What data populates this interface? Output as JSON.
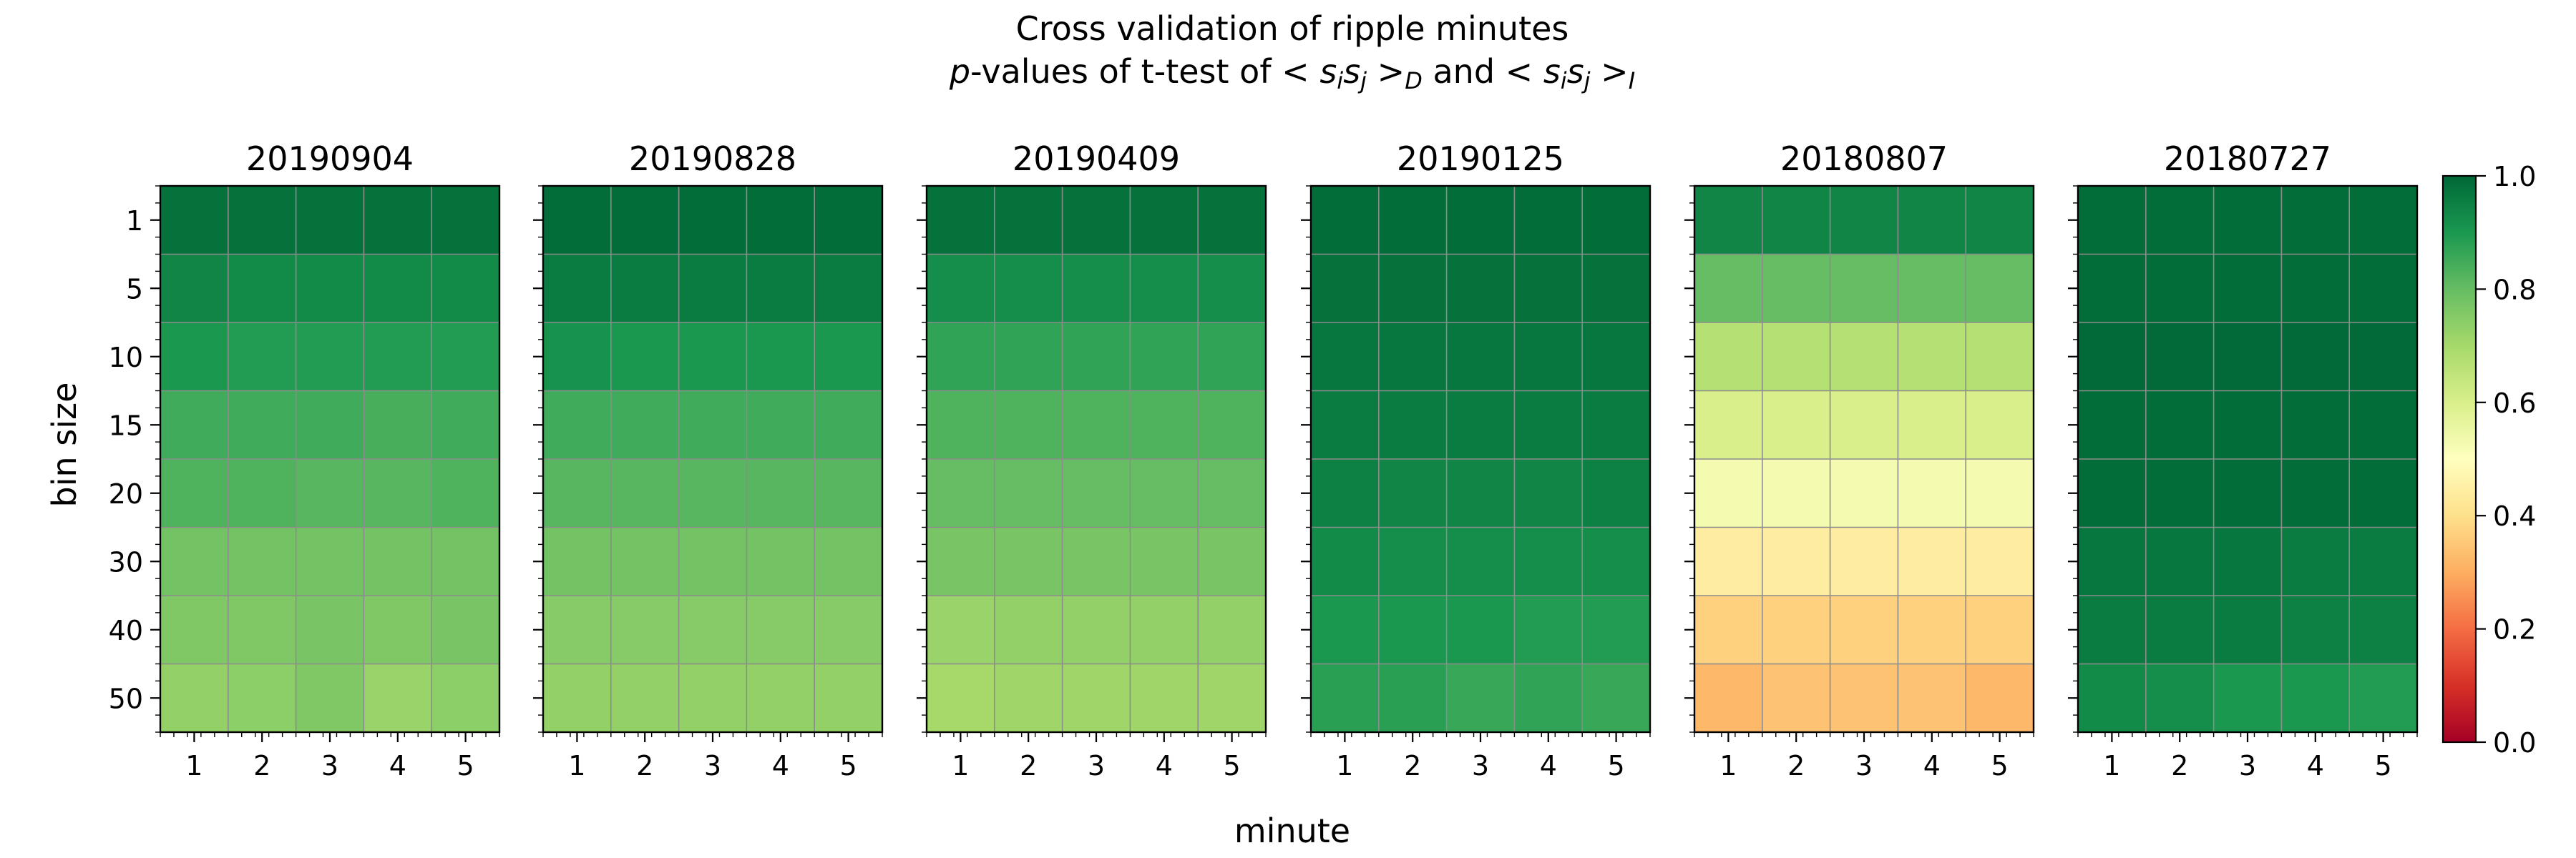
{
  "chart_data": {
    "type": "heatmap",
    "title_line1": "Cross validation of ripple minutes",
    "title_line2": {
      "p": "p",
      "dash_text": "-values of t-test of ",
      "lt": "< ",
      "s1": "s",
      "i": "i",
      "s2": "s",
      "j": "j",
      "gt": " >",
      "subD": "D",
      "and_text": " and ",
      "subI": "I"
    },
    "xlabel": "minute",
    "ylabel": "bin size",
    "x_ticks": [
      "1",
      "2",
      "3",
      "4",
      "5"
    ],
    "y_ticks": [
      "1",
      "5",
      "10",
      "15",
      "20",
      "30",
      "40",
      "50"
    ],
    "colorbar": {
      "ticks": [
        "0.0",
        "0.2",
        "0.4",
        "0.6",
        "0.8",
        "1.0"
      ],
      "range": [
        0,
        1
      ],
      "colormap": "RdYlGn",
      "stops": [
        "#a50026",
        "#d73027",
        "#f46d43",
        "#fdae61",
        "#fee08b",
        "#ffffbf",
        "#d9ef8b",
        "#a6d96a",
        "#66bd63",
        "#1a9850",
        "#006837"
      ]
    },
    "panels": [
      {
        "title": "20190904",
        "values": [
          [
            0.98,
            0.98,
            0.98,
            0.98,
            0.98
          ],
          [
            0.94,
            0.93,
            0.93,
            0.93,
            0.93
          ],
          [
            0.9,
            0.89,
            0.89,
            0.89,
            0.89
          ],
          [
            0.85,
            0.85,
            0.85,
            0.84,
            0.85
          ],
          [
            0.83,
            0.83,
            0.82,
            0.82,
            0.83
          ],
          [
            0.78,
            0.78,
            0.78,
            0.78,
            0.78
          ],
          [
            0.76,
            0.76,
            0.77,
            0.76,
            0.77
          ],
          [
            0.73,
            0.74,
            0.76,
            0.72,
            0.74
          ]
        ]
      },
      {
        "title": "20190828",
        "values": [
          [
            0.99,
            0.99,
            0.99,
            0.99,
            0.99
          ],
          [
            0.96,
            0.96,
            0.96,
            0.96,
            0.96
          ],
          [
            0.91,
            0.9,
            0.9,
            0.9,
            0.9
          ],
          [
            0.85,
            0.85,
            0.85,
            0.85,
            0.85
          ],
          [
            0.82,
            0.82,
            0.82,
            0.82,
            0.82
          ],
          [
            0.78,
            0.78,
            0.78,
            0.78,
            0.78
          ],
          [
            0.75,
            0.75,
            0.75,
            0.75,
            0.75
          ],
          [
            0.73,
            0.73,
            0.73,
            0.73,
            0.73
          ]
        ]
      },
      {
        "title": "20190409",
        "values": [
          [
            0.98,
            0.98,
            0.98,
            0.98,
            0.98
          ],
          [
            0.92,
            0.92,
            0.92,
            0.92,
            0.92
          ],
          [
            0.87,
            0.87,
            0.87,
            0.87,
            0.87
          ],
          [
            0.83,
            0.83,
            0.83,
            0.83,
            0.83
          ],
          [
            0.8,
            0.8,
            0.8,
            0.8,
            0.8
          ],
          [
            0.77,
            0.77,
            0.77,
            0.77,
            0.77
          ],
          [
            0.72,
            0.73,
            0.73,
            0.73,
            0.73
          ],
          [
            0.7,
            0.71,
            0.71,
            0.71,
            0.71
          ]
        ]
      },
      {
        "title": "20190125",
        "values": [
          [
            0.99,
            0.99,
            0.99,
            0.99,
            0.99
          ],
          [
            0.98,
            0.98,
            0.98,
            0.98,
            0.98
          ],
          [
            0.97,
            0.97,
            0.97,
            0.97,
            0.97
          ],
          [
            0.96,
            0.96,
            0.96,
            0.96,
            0.96
          ],
          [
            0.95,
            0.94,
            0.94,
            0.94,
            0.95
          ],
          [
            0.93,
            0.92,
            0.92,
            0.92,
            0.92
          ],
          [
            0.9,
            0.9,
            0.9,
            0.89,
            0.89
          ],
          [
            0.88,
            0.88,
            0.86,
            0.87,
            0.86
          ]
        ]
      },
      {
        "title": "20180807",
        "values": [
          [
            0.94,
            0.94,
            0.94,
            0.94,
            0.94
          ],
          [
            0.8,
            0.8,
            0.8,
            0.8,
            0.8
          ],
          [
            0.67,
            0.67,
            0.67,
            0.67,
            0.67
          ],
          [
            0.6,
            0.6,
            0.6,
            0.6,
            0.6
          ],
          [
            0.53,
            0.53,
            0.53,
            0.53,
            0.53
          ],
          [
            0.44,
            0.44,
            0.44,
            0.44,
            0.44
          ],
          [
            0.37,
            0.37,
            0.37,
            0.37,
            0.37
          ],
          [
            0.32,
            0.34,
            0.34,
            0.34,
            0.32
          ]
        ]
      },
      {
        "title": "20180727",
        "values": [
          [
            0.99,
            0.99,
            0.99,
            0.99,
            0.99
          ],
          [
            0.99,
            0.99,
            0.99,
            0.99,
            0.99
          ],
          [
            0.995,
            0.995,
            0.995,
            0.995,
            0.995
          ],
          [
            0.99,
            0.99,
            0.99,
            0.99,
            0.99
          ],
          [
            0.99,
            0.99,
            0.99,
            0.99,
            0.99
          ],
          [
            0.97,
            0.97,
            0.97,
            0.96,
            0.96
          ],
          [
            0.96,
            0.96,
            0.96,
            0.95,
            0.95
          ],
          [
            0.93,
            0.92,
            0.9,
            0.9,
            0.89
          ]
        ]
      }
    ]
  }
}
